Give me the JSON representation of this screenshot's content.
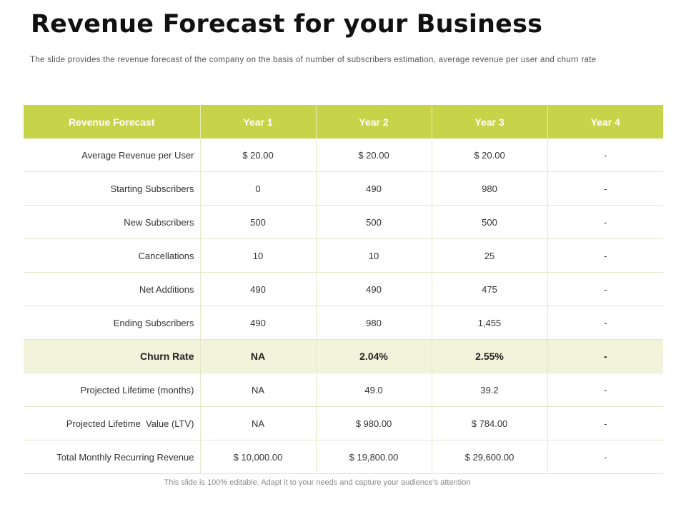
{
  "title": "Revenue Forecast for your Business",
  "subtitle": "The slide provides the revenue forecast of the company on the basis of number of subscribers estimation, average revenue per user and churn rate",
  "colors": {
    "header_bg": "#c7d44a",
    "highlight_row_bg": "#f1f4da"
  },
  "table": {
    "headers": [
      "Revenue Forecast",
      "Year 1",
      "Year 2",
      "Year 3",
      "Year 4"
    ],
    "rows": [
      {
        "label": "Average Revenue per User",
        "values": [
          "$ 20.00",
          "$ 20.00",
          "$ 20.00",
          "-"
        ]
      },
      {
        "label": "Starting Subscribers",
        "values": [
          "0",
          "490",
          "980",
          "-"
        ]
      },
      {
        "label": "New Subscribers",
        "values": [
          "500",
          "500",
          "500",
          "-"
        ]
      },
      {
        "label": "Cancellations",
        "values": [
          "10",
          "10",
          "25",
          "-"
        ]
      },
      {
        "label": "Net Additions",
        "values": [
          "490",
          "490",
          "475",
          "-"
        ]
      },
      {
        "label": "Ending Subscribers",
        "values": [
          "490",
          "980",
          "1,455",
          "-"
        ]
      },
      {
        "label": "Churn Rate",
        "values": [
          "NA",
          "2.04%",
          "2.55%",
          "-"
        ]
      },
      {
        "label": "Projected Lifetime (months)",
        "values": [
          "NA",
          "49.0",
          "39.2",
          "-"
        ]
      },
      {
        "label": "Projected Lifetime  Value (LTV)",
        "values": [
          "NA",
          "$ 980.00",
          "$ 784.00",
          "-"
        ]
      },
      {
        "label": "Total Monthly Recurring Revenue",
        "values": [
          "$ 10,000.00",
          "$ 19,800.00",
          "$ 29,600.00",
          "-"
        ]
      }
    ]
  },
  "footer": "This slide is 100% editable. Adapt it to your needs and capture your audience's attention"
}
